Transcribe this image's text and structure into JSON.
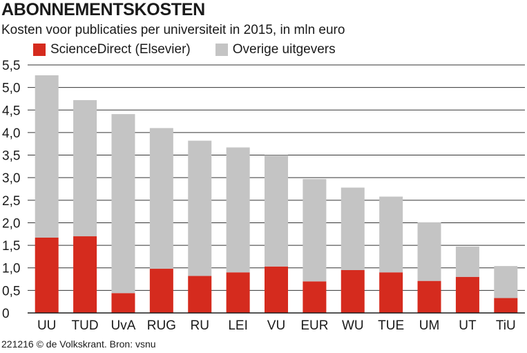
{
  "title": "ABONNEMENTSKOSTEN",
  "subtitle": "Kosten voor publicaties per universiteit in 2015, in mln euro",
  "source": "221216 © de Volkskrant. Bron: vsnu",
  "colors": {
    "sciencedirect": "#d52b1e",
    "overige": "#c4c4c4",
    "grid": "#333333"
  },
  "chart_data": {
    "type": "bar",
    "stacked": true,
    "categories": [
      "UU",
      "TUD",
      "UvA",
      "RUG",
      "RU",
      "LEI",
      "VU",
      "EUR",
      "WU",
      "TUE",
      "UM",
      "UT",
      "TiU"
    ],
    "series": [
      {
        "name": "ScienceDirect (Elsevier)",
        "values": [
          1.67,
          1.7,
          0.44,
          0.98,
          0.82,
          0.9,
          1.03,
          0.7,
          0.95,
          0.9,
          0.71,
          0.8,
          0.33
        ]
      },
      {
        "name": "Overige uitgevers",
        "values": [
          3.6,
          3.02,
          3.97,
          3.12,
          3.0,
          2.77,
          2.47,
          2.27,
          1.83,
          1.68,
          1.3,
          0.67,
          0.71
        ]
      }
    ],
    "yticks": [
      "0",
      "0,5",
      "1,0",
      "1,5",
      "2,0",
      "2,5",
      "3,0",
      "3,5",
      "4,0",
      "4,5",
      "5,0",
      "5,5"
    ],
    "ylim": [
      0,
      5.5
    ],
    "grid": true,
    "legend": "top-left"
  }
}
